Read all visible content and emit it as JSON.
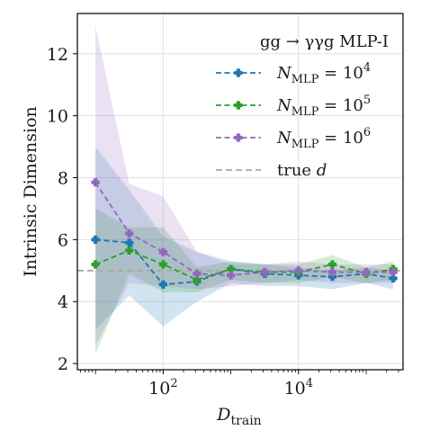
{
  "chart_data": {
    "type": "line",
    "legend_title": "gg → γγg MLP-I",
    "xlabel_main": "D",
    "xlabel_sub": "train",
    "ylabel": "Intrinsic Dimension",
    "x_scale": "log",
    "xlim": [
      5.4,
      350000
    ],
    "ylim": [
      1.8,
      13.3
    ],
    "yticks": [
      2,
      4,
      6,
      8,
      10,
      12
    ],
    "xticks": [
      {
        "value": 100,
        "base": "10",
        "exp": "2"
      },
      {
        "value": 10000,
        "base": "10",
        "exp": "4"
      }
    ],
    "grid": true,
    "legend_position": "top-right",
    "true_d": 5,
    "true_d_label": "true d",
    "x": [
      10,
      31.6,
      100,
      316,
      1000,
      3162,
      10000,
      31623,
      100000,
      251189
    ],
    "series": [
      {
        "name": "N_MLP = 10^4",
        "name_main": "N",
        "name_sub": "MLP",
        "name_eq": " = 10",
        "name_exp": "4",
        "color": "#1f77b4",
        "values": [
          6.0,
          5.9,
          4.55,
          4.65,
          5.05,
          4.9,
          4.85,
          4.8,
          4.9,
          4.75
        ],
        "lower": [
          3.1,
          4.2,
          3.2,
          4.0,
          4.6,
          4.5,
          4.5,
          4.4,
          4.6,
          4.4
        ],
        "upper": [
          9.0,
          7.6,
          6.1,
          5.6,
          5.3,
          5.2,
          5.1,
          5.0,
          5.1,
          5.0
        ]
      },
      {
        "name": "N_MLP = 10^5",
        "name_main": "N",
        "name_sub": "MLP",
        "name_eq": " = 10",
        "name_exp": "5",
        "color": "#2ca02c",
        "values": [
          5.2,
          5.65,
          5.2,
          4.7,
          5.05,
          4.95,
          4.95,
          5.2,
          4.9,
          5.05
        ],
        "lower": [
          2.3,
          4.9,
          4.3,
          4.3,
          4.7,
          4.6,
          4.6,
          4.8,
          4.6,
          4.7
        ],
        "upper": [
          7.0,
          6.4,
          6.4,
          5.1,
          5.3,
          5.2,
          5.2,
          5.5,
          5.1,
          5.3
        ]
      },
      {
        "name": "N_MLP = 10^6",
        "name_main": "N",
        "name_sub": "MLP",
        "name_eq": " = 10",
        "name_exp": "6",
        "color": "#9467bd",
        "values": [
          7.85,
          6.2,
          5.6,
          4.9,
          4.85,
          4.95,
          5.0,
          4.95,
          4.95,
          4.95
        ],
        "lower": [
          2.6,
          4.6,
          4.5,
          4.4,
          4.5,
          4.6,
          4.7,
          4.6,
          4.6,
          4.6
        ],
        "upper": [
          12.9,
          7.8,
          7.4,
          5.6,
          5.2,
          5.2,
          5.3,
          5.2,
          5.2,
          5.2
        ]
      }
    ]
  }
}
